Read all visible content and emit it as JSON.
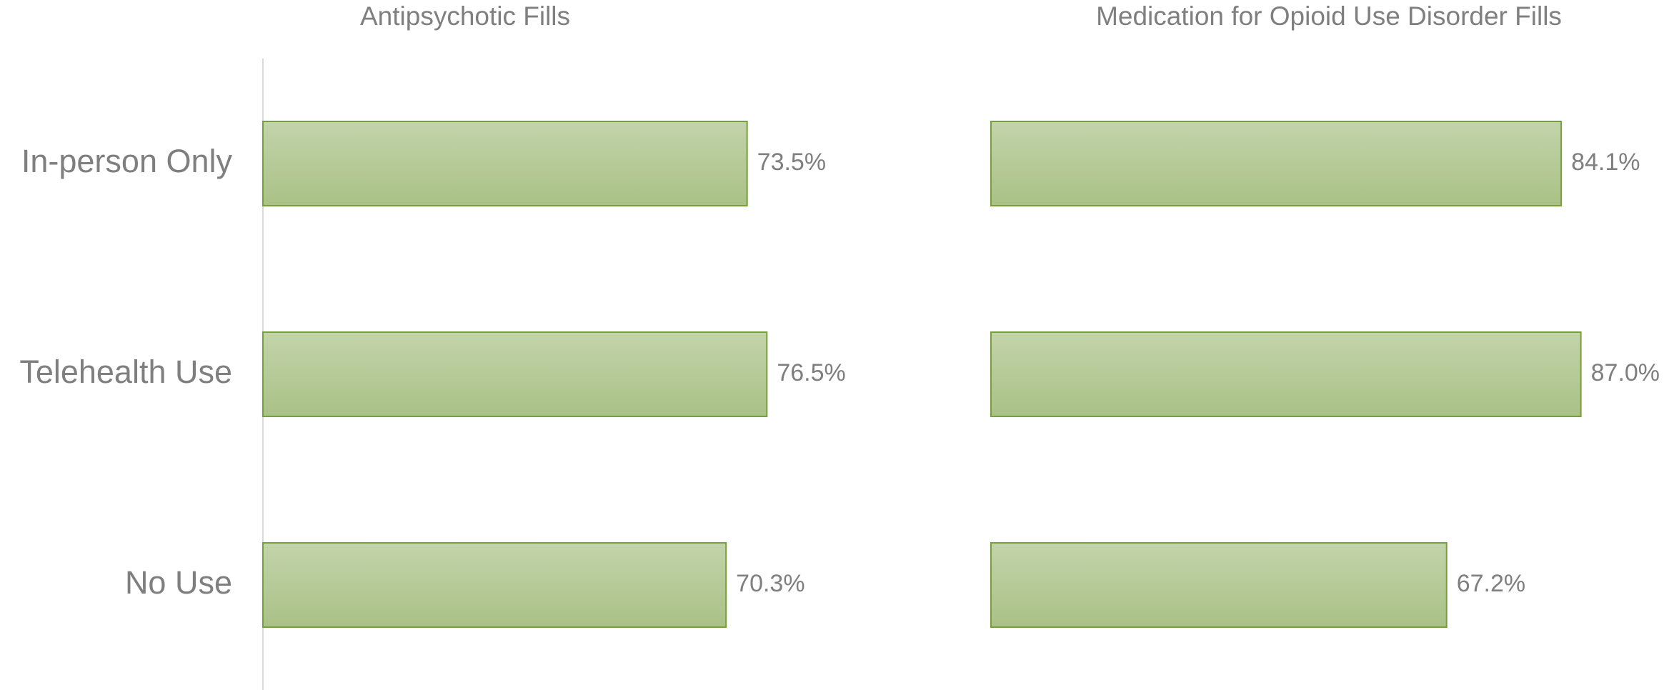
{
  "chart_data": [
    {
      "type": "barh",
      "title": "Antipsychotic Fills",
      "categories": [
        "In-person Only",
        "Telehealth Use",
        "No Use"
      ],
      "values": [
        73.5,
        76.5,
        70.3
      ],
      "value_labels": [
        "73.5%",
        "76.5%",
        "70.3%"
      ],
      "color": "#a9c186",
      "xlim": [
        0,
        100
      ]
    },
    {
      "type": "barh",
      "title": "Medication for Opioid Use Disorder Fills",
      "values": [
        84.1,
        87.0,
        67.2
      ],
      "value_labels": [
        "84.1%",
        "87.0%",
        "67.2%"
      ],
      "color": "#a9c186",
      "xlim": [
        0,
        100
      ]
    }
  ]
}
